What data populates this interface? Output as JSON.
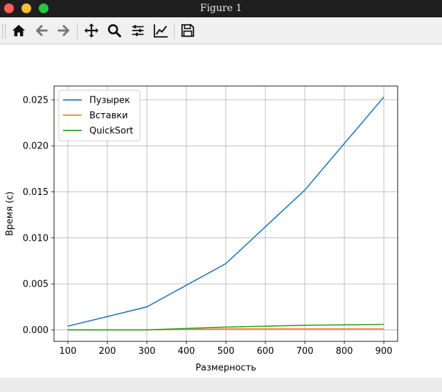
{
  "window": {
    "title": "Figure 1"
  },
  "toolbar": {
    "buttons": [
      {
        "name": "home-icon"
      },
      {
        "name": "back-arrow-icon"
      },
      {
        "name": "forward-arrow-icon"
      },
      {
        "name": "pan-icon"
      },
      {
        "name": "zoom-icon"
      },
      {
        "name": "configure-subplots-icon"
      },
      {
        "name": "edit-axis-icon"
      },
      {
        "name": "save-icon"
      }
    ]
  },
  "chart_data": {
    "type": "line",
    "title": "",
    "xlabel": "Размерность",
    "ylabel": "Время (с)",
    "x": [
      100,
      300,
      500,
      700,
      900
    ],
    "xlim": [
      65,
      935
    ],
    "ylim": [
      -0.00125,
      0.0265
    ],
    "xticks": [
      100,
      200,
      300,
      400,
      500,
      600,
      700,
      800,
      900
    ],
    "yticks": [
      0.0,
      0.005,
      0.01,
      0.015,
      0.02,
      0.025
    ],
    "ytick_labels": [
      "0.000",
      "0.005",
      "0.010",
      "0.015",
      "0.020",
      "0.025"
    ],
    "grid": true,
    "legend": "upper-left",
    "series": [
      {
        "name": "Пузырек",
        "color": "#1f77b4",
        "values": [
          0.0004,
          0.0025,
          0.0072,
          0.0152,
          0.0253
        ]
      },
      {
        "name": "Вставки",
        "color": "#ff7f0e",
        "values": [
          0.0,
          0.0,
          0.0001,
          0.0001,
          0.0001
        ]
      },
      {
        "name": "QuickSort",
        "color": "#2ca02c",
        "values": [
          0.0,
          0.0,
          0.0003,
          0.0005,
          0.0006
        ]
      }
    ]
  }
}
